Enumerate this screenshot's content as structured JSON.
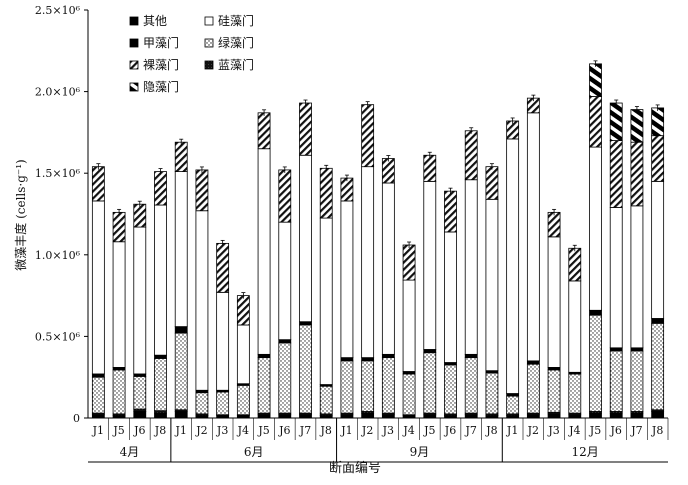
{
  "chart_data": {
    "type": "bar",
    "stacked": true,
    "ylabel": "微藻丰度 (cells·g⁻¹)",
    "xlabel": "断面编号",
    "ylim": [
      0,
      2500000
    ],
    "y_ticks": [
      {
        "value": 0,
        "label": "0"
      },
      {
        "value": 500000,
        "label": "0.5×10⁶"
      },
      {
        "value": 1000000,
        "label": "1.0×10⁶"
      },
      {
        "value": 1500000,
        "label": "1.5×10⁶"
      },
      {
        "value": 2000000,
        "label": "2.0×10⁶"
      },
      {
        "value": 2500000,
        "label": "2.5×10⁶"
      }
    ],
    "groups": [
      {
        "label": "4月",
        "stations": [
          "J1",
          "J5",
          "J6",
          "J8"
        ]
      },
      {
        "label": "6月",
        "stations": [
          "J1",
          "J2",
          "J3",
          "J4",
          "J5",
          "J6",
          "J7",
          "J8"
        ]
      },
      {
        "label": "9月",
        "stations": [
          "J1",
          "J2",
          "J3",
          "J4",
          "J5",
          "J6",
          "J7",
          "J8"
        ]
      },
      {
        "label": "12月",
        "stations": [
          "J1",
          "J2",
          "J3",
          "J4",
          "J5",
          "J6",
          "J7",
          "J8"
        ]
      }
    ],
    "series_legend_order": [
      "其他",
      "硅藻门",
      "甲藻门",
      "绿藻门",
      "裸藻门",
      "蓝藻门",
      "隐藻门"
    ],
    "stack_order": [
      "其他",
      "蓝藻门",
      "绿藻门",
      "甲藻门",
      "硅藻门",
      "裸藻门",
      "隐藻门"
    ],
    "series_styles": {
      "其他": "black",
      "蓝藻门": "dark",
      "绿藻门": "dots",
      "甲藻门": "black",
      "硅藻门": "white",
      "裸藻门": "hatch",
      "隐藻门": "bolddiag"
    },
    "bars": [
      {
        "group": "4月",
        "station": "J1",
        "values": {
          "其他": 20000,
          "蓝藻门": 10000,
          "绿藻门": 220000,
          "甲藻门": 20000,
          "硅藻门": 1060000,
          "裸藻门": 210000,
          "隐藻门": 0
        },
        "total": 1540000
      },
      {
        "group": "4月",
        "station": "J5",
        "values": {
          "其他": 15000,
          "蓝藻门": 10000,
          "绿藻门": 270000,
          "甲藻门": 15000,
          "硅藻门": 770000,
          "裸藻门": 180000,
          "隐藻门": 0
        },
        "total": 1260000
      },
      {
        "group": "4月",
        "station": "J6",
        "values": {
          "其他": 40000,
          "蓝藻门": 15000,
          "绿藻门": 200000,
          "甲藻门": 15000,
          "硅藻门": 900000,
          "裸藻门": 140000,
          "隐藻门": 0
        },
        "total": 1310000
      },
      {
        "group": "4月",
        "station": "J8",
        "values": {
          "其他": 30000,
          "蓝藻门": 15000,
          "绿藻门": 320000,
          "甲藻门": 20000,
          "硅藻门": 920000,
          "裸藻门": 205000,
          "隐藻门": 0
        },
        "total": 1510000
      },
      {
        "group": "6月",
        "station": "J1",
        "values": {
          "其他": 40000,
          "蓝藻门": 10000,
          "绿藻门": 470000,
          "甲藻门": 40000,
          "硅藻门": 950000,
          "裸藻门": 180000,
          "隐藻门": 0
        },
        "total": 1690000
      },
      {
        "group": "6月",
        "station": "J2",
        "values": {
          "其他": 15000,
          "蓝藻门": 10000,
          "绿藻门": 130000,
          "甲藻门": 15000,
          "硅藻门": 1100000,
          "裸藻门": 250000,
          "隐藻门": 0
        },
        "total": 1520000
      },
      {
        "group": "6月",
        "station": "J3",
        "values": {
          "其他": 15000,
          "蓝藻门": 5000,
          "绿藻门": 140000,
          "甲藻门": 10000,
          "硅藻门": 600000,
          "裸藻门": 300000,
          "隐藻门": 0
        },
        "total": 1070000
      },
      {
        "group": "6月",
        "station": "J4",
        "values": {
          "其他": 15000,
          "蓝藻门": 5000,
          "绿藻门": 180000,
          "甲藻门": 10000,
          "硅藻门": 360000,
          "裸藻门": 180000,
          "隐藻门": 0
        },
        "total": 750000
      },
      {
        "group": "6月",
        "station": "J5",
        "values": {
          "其他": 20000,
          "蓝藻门": 10000,
          "绿藻门": 340000,
          "甲藻门": 20000,
          "硅藻门": 1260000,
          "裸藻门": 220000,
          "隐藻门": 0
        },
        "total": 1870000
      },
      {
        "group": "6月",
        "station": "J6",
        "values": {
          "其他": 20000,
          "蓝藻门": 10000,
          "绿藻门": 430000,
          "甲藻门": 20000,
          "硅藻门": 720000,
          "裸藻门": 320000,
          "隐藻门": 0
        },
        "total": 1520000
      },
      {
        "group": "6月",
        "station": "J7",
        "values": {
          "其他": 20000,
          "蓝藻门": 10000,
          "绿藻门": 540000,
          "甲藻门": 20000,
          "硅藻门": 1020000,
          "裸藻门": 320000,
          "隐藻门": 0
        },
        "total": 1930000
      },
      {
        "group": "6月",
        "station": "J8",
        "values": {
          "其他": 15000,
          "蓝藻门": 10000,
          "绿藻门": 170000,
          "甲藻门": 10000,
          "硅藻门": 1020000,
          "裸藻门": 305000,
          "隐藻门": 0
        },
        "total": 1530000
      },
      {
        "group": "9月",
        "station": "J1",
        "values": {
          "其他": 20000,
          "蓝藻门": 10000,
          "绿藻门": 320000,
          "甲藻门": 20000,
          "硅藻门": 960000,
          "裸藻门": 140000,
          "隐藻门": 0
        },
        "total": 1470000
      },
      {
        "group": "9月",
        "station": "J2",
        "values": {
          "其他": 30000,
          "蓝藻门": 10000,
          "绿藻门": 310000,
          "甲藻门": 20000,
          "硅藻门": 1170000,
          "裸藻门": 380000,
          "隐藻门": 0
        },
        "total": 1920000
      },
      {
        "group": "9月",
        "station": "J3",
        "values": {
          "其他": 20000,
          "蓝藻门": 10000,
          "绿藻门": 340000,
          "甲藻门": 20000,
          "硅藻门": 1050000,
          "裸藻门": 150000,
          "隐藻门": 0
        },
        "total": 1590000
      },
      {
        "group": "9月",
        "station": "J4",
        "values": {
          "其他": 15000,
          "蓝藻门": 5000,
          "绿藻门": 250000,
          "甲藻门": 15000,
          "硅藻门": 560000,
          "裸藻门": 215000,
          "隐藻门": 0
        },
        "total": 1060000
      },
      {
        "group": "9月",
        "station": "J5",
        "values": {
          "其他": 20000,
          "蓝藻门": 10000,
          "绿藻门": 370000,
          "甲藻门": 20000,
          "硅藻门": 1030000,
          "裸藻门": 160000,
          "隐藻门": 0
        },
        "total": 1610000
      },
      {
        "group": "9月",
        "station": "J6",
        "values": {
          "其他": 15000,
          "蓝藻门": 10000,
          "绿藻门": 300000,
          "甲藻门": 15000,
          "硅藻门": 800000,
          "裸藻门": 250000,
          "隐藻门": 0
        },
        "total": 1390000
      },
      {
        "group": "9月",
        "station": "J7",
        "values": {
          "其他": 20000,
          "蓝藻门": 10000,
          "绿藻门": 340000,
          "甲藻门": 20000,
          "硅藻门": 1070000,
          "裸藻门": 300000,
          "隐藻门": 0
        },
        "total": 1760000
      },
      {
        "group": "9月",
        "station": "J8",
        "values": {
          "其他": 15000,
          "蓝藻门": 10000,
          "绿藻门": 250000,
          "甲藻门": 15000,
          "硅藻门": 1050000,
          "裸藻门": 200000,
          "隐藻门": 0
        },
        "total": 1540000
      },
      {
        "group": "12月",
        "station": "J1",
        "values": {
          "其他": 15000,
          "蓝藻门": 10000,
          "绿藻门": 110000,
          "甲藻门": 15000,
          "硅藻门": 1560000,
          "裸藻门": 110000,
          "隐藻门": 0
        },
        "total": 1820000
      },
      {
        "group": "12月",
        "station": "J2",
        "values": {
          "其他": 20000,
          "蓝藻门": 10000,
          "绿藻门": 300000,
          "甲藻门": 20000,
          "硅藻门": 1520000,
          "裸藻门": 90000,
          "隐藻门": 0
        },
        "total": 1960000
      },
      {
        "group": "12月",
        "station": "J3",
        "values": {
          "其他": 25000,
          "蓝藻门": 10000,
          "绿藻门": 260000,
          "甲藻门": 15000,
          "硅藻门": 800000,
          "裸藻门": 150000,
          "隐藻门": 0
        },
        "total": 1260000
      },
      {
        "group": "12月",
        "station": "J4",
        "values": {
          "其他": 20000,
          "蓝藻门": 10000,
          "绿藻门": 240000,
          "甲藻门": 10000,
          "硅藻门": 560000,
          "裸藻门": 200000,
          "隐藻门": 0
        },
        "total": 1040000
      },
      {
        "group": "12月",
        "station": "J5",
        "values": {
          "其他": 30000,
          "蓝藻门": 10000,
          "绿藻门": 590000,
          "甲藻门": 30000,
          "硅藻门": 1000000,
          "裸藻门": 310000,
          "隐藻门": 200000
        },
        "total": 2170000
      },
      {
        "group": "12月",
        "station": "J6",
        "values": {
          "其他": 30000,
          "蓝藻门": 10000,
          "绿藻门": 370000,
          "甲藻门": 20000,
          "硅藻门": 860000,
          "裸藻门": 410000,
          "隐藻门": 230000
        },
        "total": 1930000
      },
      {
        "group": "12月",
        "station": "J7",
        "values": {
          "其他": 30000,
          "蓝藻门": 10000,
          "绿藻门": 370000,
          "甲藻门": 20000,
          "硅藻门": 870000,
          "裸藻门": 390000,
          "隐藻门": 200000
        },
        "total": 1890000
      },
      {
        "group": "12月",
        "station": "J8",
        "values": {
          "其他": 40000,
          "蓝藻门": 10000,
          "绿藻门": 530000,
          "甲藻门": 30000,
          "硅藻门": 840000,
          "裸藻门": 280000,
          "隐藻门": 170000
        },
        "total": 1900000
      }
    ]
  }
}
